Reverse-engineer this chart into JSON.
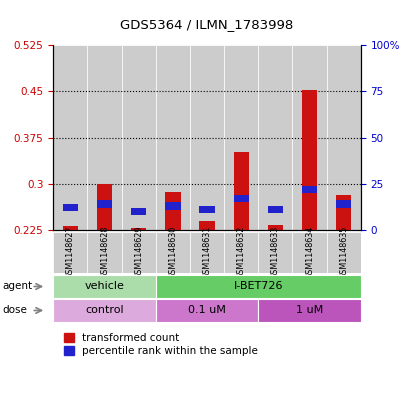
{
  "title": "GDS5364 / ILMN_1783998",
  "samples": [
    "GSM1148627",
    "GSM1148628",
    "GSM1148629",
    "GSM1148630",
    "GSM1148631",
    "GSM1148632",
    "GSM1148633",
    "GSM1148634",
    "GSM1148635"
  ],
  "red_values": [
    0.232,
    0.3,
    0.228,
    0.286,
    0.24,
    0.352,
    0.233,
    0.453,
    0.282
  ],
  "blue_pct": [
    10,
    12,
    8,
    11,
    9,
    15,
    9,
    20,
    12
  ],
  "ylim_left": [
    0.225,
    0.525
  ],
  "ylim_right": [
    0,
    100
  ],
  "yticks_left": [
    0.225,
    0.3,
    0.375,
    0.45,
    0.525
  ],
  "ytick_labels_left": [
    "0.225",
    "0.3",
    "0.375",
    "0.45",
    "0.525"
  ],
  "yticks_right": [
    0,
    25,
    50,
    75,
    100
  ],
  "ytick_labels_right": [
    "0",
    "25",
    "50",
    "75",
    "100%"
  ],
  "bar_base": 0.225,
  "agent_groups": [
    {
      "label": "vehicle",
      "span": [
        0,
        2
      ],
      "color": "#aaddaa"
    },
    {
      "label": "I-BET726",
      "span": [
        3,
        8
      ],
      "color": "#66cc66"
    }
  ],
  "dose_groups": [
    {
      "label": "control",
      "span": [
        0,
        2
      ],
      "color": "#ddaadd"
    },
    {
      "label": "0.1 uM",
      "span": [
        3,
        5
      ],
      "color": "#cc77cc"
    },
    {
      "label": "1 uM",
      "span": [
        6,
        8
      ],
      "color": "#bb55bb"
    }
  ],
  "red_color": "#cc1111",
  "blue_color": "#2222cc",
  "bar_width": 0.45,
  "tick_color_left": "#cc0000",
  "tick_color_right": "#0000cc",
  "legend_red": "transformed count",
  "legend_blue": "percentile rank within the sample",
  "gray_box_color": "#cccccc",
  "dotted_lines": [
    0.3,
    0.375,
    0.45
  ]
}
